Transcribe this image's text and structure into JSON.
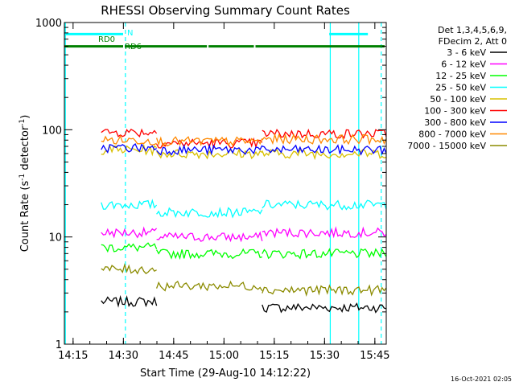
{
  "chart_data": {
    "type": "line",
    "title": "RHESSI Observing Summary Count Rates",
    "xlabel": "Start Time (29-Aug-10 14:12:22)",
    "ylabel": "Count Rate (s⁻¹ detector⁻¹)",
    "ylabel_main": "Count Rate (s",
    "ylabel_mid": " detector",
    "ylabel_end": ")",
    "ylabel_sup": "-1",
    "yscale": "log",
    "ylim": [
      1,
      1000
    ],
    "xlim_minutes": [
      0,
      96
    ],
    "x_ticks": [
      {
        "label": "14:15",
        "minute": 2.6
      },
      {
        "label": "14:30",
        "minute": 17.6
      },
      {
        "label": "14:45",
        "minute": 32.6
      },
      {
        "label": "15:00",
        "minute": 47.6
      },
      {
        "label": "15:15",
        "minute": 62.6
      },
      {
        "label": "15:30",
        "minute": 77.6
      },
      {
        "label": "15:45",
        "minute": 92.6
      }
    ],
    "y_ticks": [
      {
        "label": "1",
        "value": 1
      },
      {
        "label": "10",
        "value": 10
      },
      {
        "label": "100",
        "value": 100
      },
      {
        "label": "1000",
        "value": 1000
      }
    ],
    "legend_header": [
      "Det 1,3,4,5,6,9,",
      "FDecim 2, Att 0"
    ],
    "legend_placement": "right",
    "series": [
      {
        "name": "3 - 6 keV",
        "color": "#000000"
      },
      {
        "name": "6 - 12 keV",
        "color": "#ff00ff"
      },
      {
        "name": "12 - 25 keV",
        "color": "#00ff00"
      },
      {
        "name": "25 - 50 keV",
        "color": "#00ffff"
      },
      {
        "name": "50 - 100 keV",
        "color": "#d8c000"
      },
      {
        "name": "100 - 300 keV",
        "color": "#ff0000"
      },
      {
        "name": "300 - 800 keV",
        "color": "#0000ff"
      },
      {
        "name": "800 - 7000 keV",
        "color": "#ff8800"
      },
      {
        "name": "7000 - 15000 keV",
        "color": "#8b8b00"
      }
    ],
    "segments_minutes": [
      [
        11,
        27.5
      ],
      [
        27.5,
        59
      ],
      [
        59,
        96
      ]
    ],
    "series_levels": [
      [
        2.5,
        0,
        2.2
      ],
      [
        11,
        10,
        11
      ],
      [
        8,
        7,
        7
      ],
      [
        20,
        17,
        20
      ],
      [
        65,
        60,
        60
      ],
      [
        95,
        75,
        92
      ],
      [
        68,
        65,
        65
      ],
      [
        80,
        78,
        82
      ],
      [
        5,
        3.5,
        3.2
      ]
    ],
    "flags": [
      {
        "label": "N",
        "color": "#00ffff",
        "spans_minutes": [
          [
            0,
            18
          ],
          [
            79,
            91
          ]
        ],
        "value": 780
      },
      {
        "label": "RD0",
        "color": "#008000",
        "spans_minutes": [
          [
            0,
            18
          ],
          [
            18,
            43
          ],
          [
            43,
            57
          ],
          [
            57,
            96
          ]
        ],
        "value": 600
      },
      {
        "label": "RD6",
        "color": "#008000",
        "spans_minutes": [],
        "value": 600
      }
    ],
    "saa_lines_minutes": [
      [
        0.3,
        "solid"
      ],
      [
        18.2,
        "dashed"
      ],
      [
        79.3,
        "solid"
      ],
      [
        87.8,
        "solid"
      ],
      [
        94.5,
        "dashed"
      ]
    ],
    "timestamp": "16-Oct-2021 02:05",
    "grid": false
  }
}
